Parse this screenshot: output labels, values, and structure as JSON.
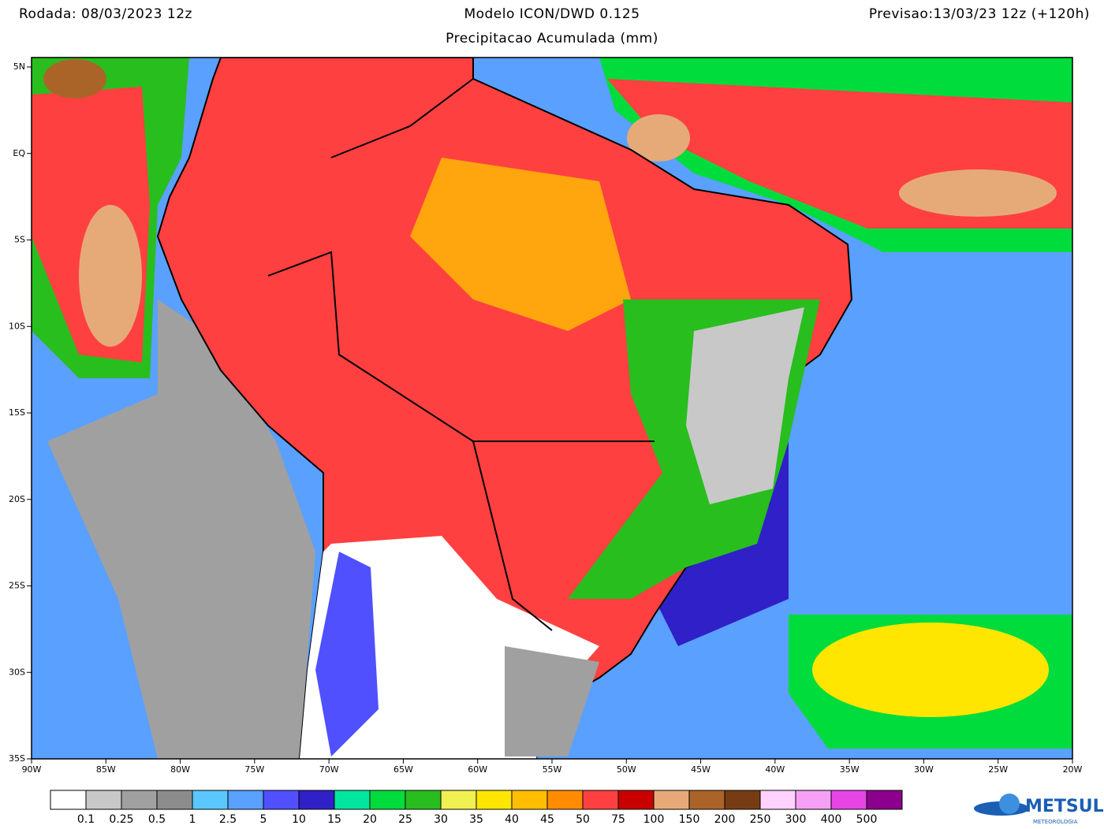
{
  "header": {
    "run": "Rodada: 08/03/2023 12z",
    "model": "Modelo ICON/DWD 0.125",
    "forecast": "Previsao:13/03/23 12z (+120h)",
    "subtitle": "Precipitacao Acumulada (mm)"
  },
  "map": {
    "lon_ticks": [
      "90W",
      "85W",
      "80W",
      "75W",
      "70W",
      "65W",
      "60W",
      "55W",
      "50W",
      "45W",
      "40W",
      "35W",
      "30W",
      "25W",
      "20W"
    ],
    "lat_ticks": [
      "5N",
      "EQ",
      "5S",
      "10S",
      "15S",
      "20S",
      "25S",
      "30S",
      "35S"
    ]
  },
  "legend": {
    "colors": [
      "#ffffff",
      "#c8c8c8",
      "#a0a0a0",
      "#8c8c8c",
      "#5ac8ff",
      "#5aa0ff",
      "#5050ff",
      "#3020c8",
      "#00e6a0",
      "#00dc3c",
      "#28be1e",
      "#f0f050",
      "#ffe600",
      "#ffbe00",
      "#ff8c00",
      "#ff4040",
      "#c80000",
      "#e6aa78",
      "#aa6428",
      "#783c14",
      "#ffd2ff",
      "#f5a0f5",
      "#e646e6",
      "#8c008c"
    ],
    "labels": [
      "0.1",
      "0.25",
      "0.5",
      "1",
      "2.5",
      "5",
      "10",
      "15",
      "20",
      "25",
      "30",
      "35",
      "40",
      "45",
      "50",
      "75",
      "100",
      "150",
      "200",
      "250",
      "300",
      "400",
      "500"
    ]
  },
  "logo": {
    "name": "METSUL",
    "tagline": "METEOROLOGIA"
  }
}
